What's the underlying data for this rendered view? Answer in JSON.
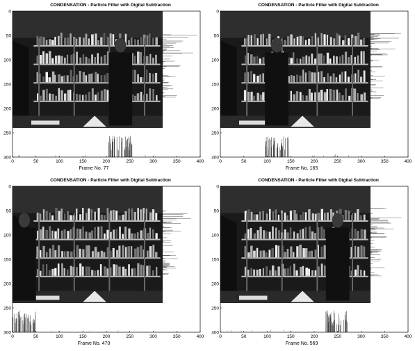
{
  "panels": [
    {
      "title": "CONDENSATION - Particle Filter with Digital Subtraction",
      "frame_label": "Frame No. 77",
      "x_ticks": [
        "0",
        "50",
        "100",
        "150",
        "200",
        "250",
        "300",
        "350",
        "400"
      ],
      "y_ticks": [
        "0",
        "50",
        "100",
        "150",
        "200",
        "250",
        "300"
      ],
      "target_x": 230
    },
    {
      "title": "CONDENSATION - Particle Filter with Digital Subtraction",
      "frame_label": "Frame No. 165",
      "x_ticks": [
        "0",
        "50",
        "100",
        "150",
        "200",
        "250",
        "300",
        "350",
        "400"
      ],
      "y_ticks": [
        "0",
        "50",
        "100",
        "150",
        "200",
        "250",
        "300"
      ],
      "target_x": 120
    },
    {
      "title": "CONDENSATION - Particle Filter with Digital Subtraction",
      "frame_label": "Frame No. 470",
      "x_ticks": [
        "0",
        "50",
        "100",
        "150",
        "200",
        "250",
        "300",
        "350",
        "400"
      ],
      "y_ticks": [
        "0",
        "50",
        "100",
        "150",
        "200",
        "250",
        "300"
      ],
      "target_x": 25
    },
    {
      "title": "CONDENSATION - Particle Filter with Digital Subtraction",
      "frame_label": "Frame No. 569",
      "x_ticks": [
        "0",
        "50",
        "100",
        "150",
        "200",
        "250",
        "300",
        "350",
        "400"
      ],
      "y_ticks": [
        "0",
        "50",
        "100",
        "150",
        "200",
        "250",
        "300"
      ],
      "target_x": 250
    }
  ]
}
